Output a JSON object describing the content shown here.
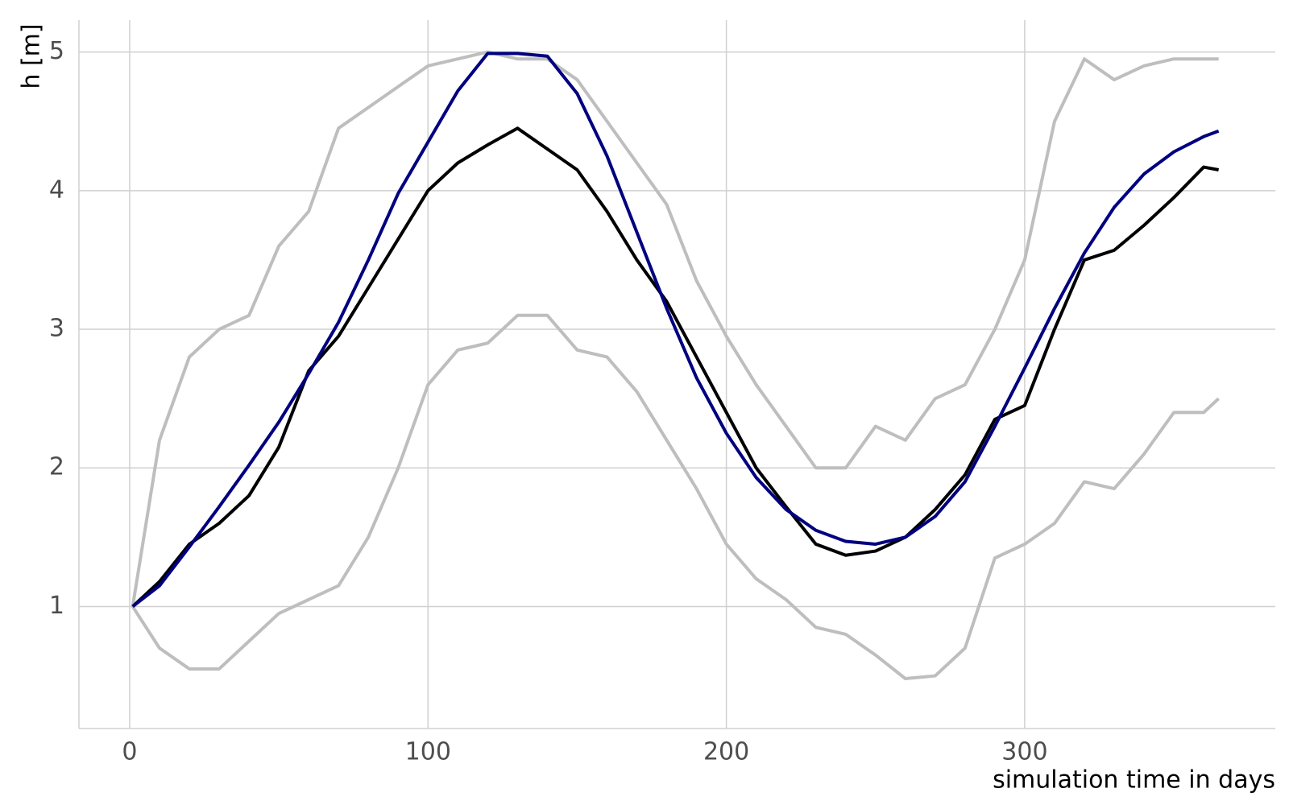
{
  "chart_data": {
    "type": "line",
    "x_label": "simulation time in days",
    "y_label": "h [m]",
    "x": [
      1,
      10,
      20,
      30,
      40,
      50,
      60,
      70,
      80,
      90,
      100,
      110,
      120,
      130,
      140,
      150,
      160,
      170,
      180,
      190,
      200,
      210,
      220,
      230,
      240,
      250,
      260,
      270,
      280,
      290,
      300,
      310,
      320,
      330,
      340,
      350,
      360,
      365
    ],
    "series": [
      {
        "color": "#bebebe",
        "values": [
          1.0,
          2.2,
          2.8,
          3.0,
          3.1,
          3.6,
          3.85,
          4.45,
          4.6,
          4.75,
          4.9,
          4.95,
          5.0,
          4.95,
          4.95,
          4.8,
          4.5,
          4.2,
          3.9,
          3.35,
          2.95,
          2.6,
          2.3,
          2.0,
          2.0,
          2.3,
          2.2,
          2.5,
          2.6,
          3.0,
          3.5,
          4.5,
          4.95,
          4.8,
          4.9,
          4.95,
          4.95,
          4.95
        ]
      },
      {
        "color": "#bebebe",
        "values": [
          1.0,
          0.7,
          0.55,
          0.55,
          0.75,
          0.95,
          1.05,
          1.15,
          1.5,
          2.0,
          2.6,
          2.85,
          2.9,
          3.1,
          3.1,
          2.85,
          2.8,
          2.55,
          2.2,
          1.85,
          1.45,
          1.2,
          1.05,
          0.85,
          0.8,
          0.65,
          0.48,
          0.5,
          0.7,
          1.35,
          1.45,
          1.6,
          1.9,
          1.85,
          2.1,
          2.4,
          2.4,
          2.5
        ]
      },
      {
        "color": "#000000",
        "values": [
          1.0,
          1.18,
          1.45,
          1.6,
          1.8,
          2.15,
          2.7,
          2.95,
          3.3,
          3.65,
          4.0,
          4.2,
          4.33,
          4.45,
          4.3,
          4.15,
          3.85,
          3.5,
          3.2,
          2.8,
          2.4,
          2.0,
          1.72,
          1.45,
          1.37,
          1.4,
          1.5,
          1.7,
          1.95,
          2.35,
          2.45,
          3.0,
          3.5,
          3.57,
          3.75,
          3.95,
          4.17,
          4.15
        ]
      },
      {
        "color": "#000080",
        "values": [
          1.0,
          1.15,
          1.43,
          1.72,
          2.02,
          2.33,
          2.68,
          3.05,
          3.5,
          3.98,
          4.35,
          4.72,
          4.99,
          4.99,
          4.97,
          4.7,
          4.25,
          3.7,
          3.15,
          2.65,
          2.25,
          1.93,
          1.7,
          1.55,
          1.47,
          1.45,
          1.5,
          1.65,
          1.9,
          2.3,
          2.72,
          3.15,
          3.55,
          3.88,
          4.12,
          4.28,
          4.39,
          4.43
        ]
      }
    ],
    "xlim": [
      -17,
      384
    ],
    "ylim": [
      0.12,
      5.23
    ],
    "xticks": [
      0,
      100,
      200,
      300
    ],
    "yticks": [
      1,
      2,
      3,
      4,
      5
    ],
    "grid": true
  }
}
